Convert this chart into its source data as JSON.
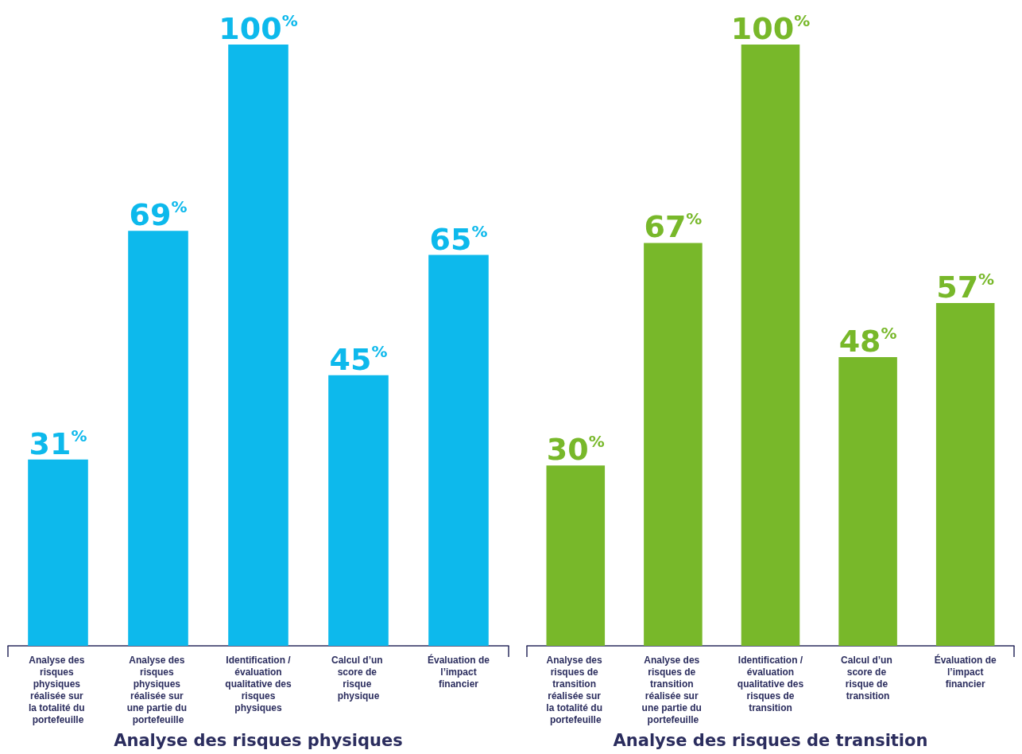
{
  "chart_data": [
    {
      "type": "bar",
      "title": "Analyse des risques physiques",
      "categories": [
        "Analyse des risques physiques réalisée sur la totalité du portefeuille",
        "Analyse des risques physiques réalisée sur une partie du portefeuille",
        "Identification / évaluation qualitative des risques physiques",
        "Calcul d’un score de risque physique",
        "Évaluation de l’impact financier"
      ],
      "values": [
        31,
        69,
        100,
        45,
        65
      ],
      "color": "#0db9ec",
      "value_labels": [
        "31%",
        "69%",
        "100%",
        "45%",
        "65%"
      ]
    },
    {
      "type": "bar",
      "title": "Analyse des risques de transition",
      "categories": [
        "Analyse des risques de transition réalisée sur la totalité du portefeuille",
        "Analyse des risques de transition réalisée sur une partie du portefeuille",
        "Identification / évaluation qualitative des risques de transition",
        "Calcul d’un score de risque de transition",
        "Évaluation de l’impact financier"
      ],
      "values": [
        30,
        67,
        100,
        48,
        57
      ],
      "color": "#78b82a",
      "value_labels": [
        "30%",
        "67%",
        "100%",
        "48%",
        "57%"
      ]
    }
  ]
}
